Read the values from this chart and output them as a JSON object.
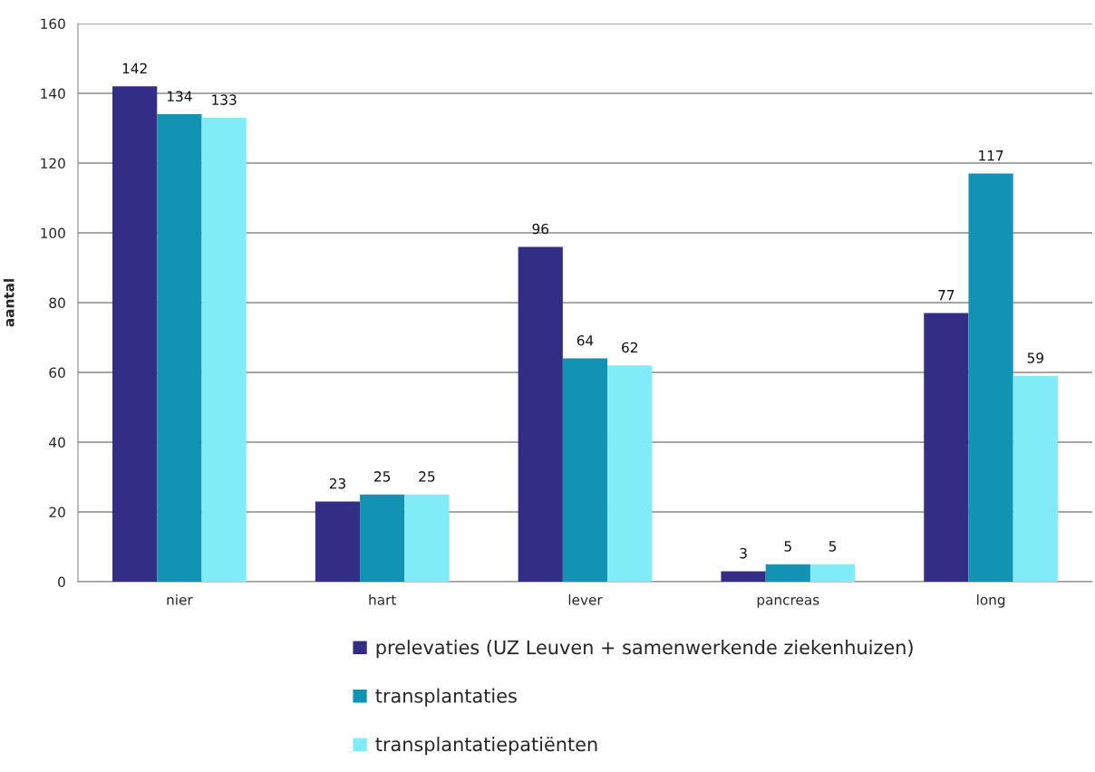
{
  "chart_data": {
    "type": "bar",
    "ylabel": "aantal",
    "categories": [
      "nier",
      "hart",
      "lever",
      "pancreas",
      "long"
    ],
    "series": [
      {
        "name": "prelevaties (UZ Leuven + samenwerkende ziekenhuizen)",
        "color": "#332d85",
        "values": [
          142,
          23,
          96,
          3,
          77
        ]
      },
      {
        "name": "transplantaties",
        "color": "#1393b3",
        "values": [
          134,
          25,
          64,
          5,
          117
        ]
      },
      {
        "name": "transplantatiepatiënten",
        "color": "#80ecf8",
        "values": [
          133,
          25,
          62,
          5,
          59
        ]
      }
    ],
    "ylim": [
      0,
      160
    ],
    "yticks": [
      0,
      20,
      40,
      60,
      80,
      100,
      120,
      140,
      160
    ],
    "grid": "y",
    "legend": "bottom",
    "data_labels": true
  }
}
